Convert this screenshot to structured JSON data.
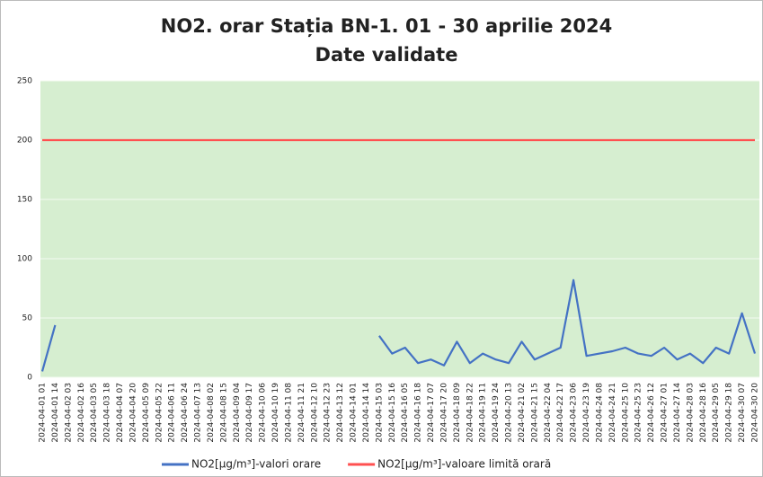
{
  "chart_data": {
    "type": "line",
    "title": "NO2. orar Stația BN-1. 01 - 30 aprilie 2024",
    "subtitle": "Date validate",
    "categories": [
      "2024-04-01 01",
      "2024-04-01 14",
      "2024-04-02 03",
      "2024-04-02 16",
      "2024-04-03 05",
      "2024-04-03 18",
      "2024-04-04 07",
      "2024-04-04 20",
      "2024-04-05 09",
      "2024-04-05 22",
      "2024-04-06 11",
      "2024-04-06 24",
      "2024-04-07 13",
      "2024-04-08 02",
      "2024-04-08 15",
      "2024-04-09 04",
      "2024-04-09 17",
      "2024-04-10 06",
      "2024-04-10 19",
      "2024-04-11 08",
      "2024-04-11 21",
      "2024-04-12 10",
      "2024-04-12 23",
      "2024-04-13 12",
      "2024-04-14 01",
      "2024-04-14 14",
      "2024-04-15 03",
      "2024-04-15 16",
      "2024-04-16 05",
      "2024-04-16 18",
      "2024-04-17 07",
      "2024-04-17 20",
      "2024-04-18 09",
      "2024-04-18 22",
      "2024-04-19 11",
      "2024-04-19 24",
      "2024-04-20 13",
      "2024-04-21 02",
      "2024-04-21 15",
      "2024-04-22 04",
      "2024-04-22 17",
      "2024-04-23 06",
      "2024-04-23 19",
      "2024-04-24 08",
      "2024-04-24 21",
      "2024-04-25 10",
      "2024-04-25 23",
      "2024-04-26 12",
      "2024-04-27 01",
      "2024-04-27 14",
      "2024-04-28 03",
      "2024-04-28 16",
      "2024-04-29 05",
      "2024-04-29 18",
      "2024-04-30 07",
      "2024-04-30 20"
    ],
    "series": [
      {
        "name": "NO2[µg/m³]-valori orare",
        "color": "#4472c4",
        "values": [
          5,
          44,
          null,
          null,
          null,
          null,
          null,
          null,
          null,
          null,
          null,
          null,
          null,
          null,
          null,
          null,
          null,
          null,
          null,
          null,
          null,
          null,
          null,
          null,
          null,
          null,
          35,
          20,
          25,
          12,
          15,
          10,
          30,
          12,
          20,
          15,
          12,
          30,
          15,
          20,
          25,
          82,
          18,
          20,
          22,
          25,
          20,
          18,
          25,
          15,
          20,
          12,
          25,
          20,
          54,
          20
        ]
      },
      {
        "name": "NO2[µg/m³]-valoare limită orară",
        "color": "#ff5050",
        "values": [
          200,
          200,
          200,
          200,
          200,
          200,
          200,
          200,
          200,
          200,
          200,
          200,
          200,
          200,
          200,
          200,
          200,
          200,
          200,
          200,
          200,
          200,
          200,
          200,
          200,
          200,
          200,
          200,
          200,
          200,
          200,
          200,
          200,
          200,
          200,
          200,
          200,
          200,
          200,
          200,
          200,
          200,
          200,
          200,
          200,
          200,
          200,
          200,
          200,
          200,
          200,
          200,
          200,
          200,
          200,
          200
        ]
      }
    ],
    "ylim": [
      0,
      250
    ],
    "yticks": [
      0,
      50,
      100,
      150,
      200,
      250
    ],
    "grid": true
  }
}
